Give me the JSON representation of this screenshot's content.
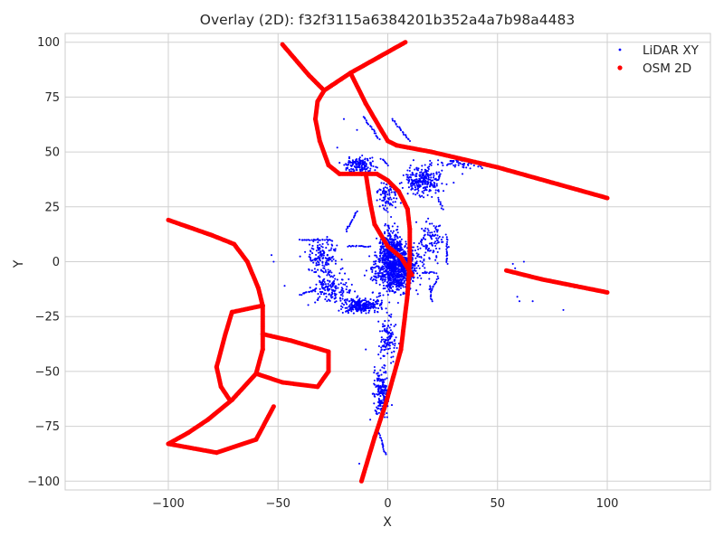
{
  "chart_data": {
    "type": "scatter",
    "title": "Overlay (2D): f32f3115a6384201b352a4a7b98a4483",
    "xlabel": "X",
    "ylabel": "Y",
    "xlim": [
      -147,
      147
    ],
    "ylim": [
      -104,
      104
    ],
    "x_ticks": [
      -100,
      -50,
      0,
      50,
      100
    ],
    "x_tick_labels": [
      "−100",
      "−50",
      "0",
      "50",
      "100"
    ],
    "y_ticks": [
      100,
      75,
      50,
      25,
      0,
      -25,
      -50,
      -75,
      -100
    ],
    "y_tick_labels": [
      "100",
      "75",
      "50",
      "25",
      "0",
      "−25",
      "−50",
      "−75",
      "−100"
    ],
    "grid": true,
    "legend": {
      "position": "top-right",
      "entries": [
        {
          "label": "LiDAR XY",
          "color": "#0000ff",
          "marker": "small-dot"
        },
        {
          "label": "OSM 2D",
          "color": "#ff0000",
          "marker": "dot"
        }
      ]
    },
    "series": [
      {
        "name": "OSM 2D",
        "color": "#ff0000",
        "polylines": [
          [
            [
              -48,
              99
            ],
            [
              -36,
              85
            ],
            [
              -29,
              78
            ],
            [
              -17,
              86
            ],
            [
              8,
              100
            ]
          ],
          [
            [
              -29,
              78
            ],
            [
              -32,
              73
            ],
            [
              -33,
              65
            ],
            [
              -31,
              55
            ],
            [
              -27,
              44
            ],
            [
              -22,
              40
            ],
            [
              -12,
              40
            ],
            [
              -5,
              40
            ],
            [
              0,
              37
            ],
            [
              5,
              32
            ],
            [
              9,
              24
            ],
            [
              10,
              15
            ],
            [
              10,
              0
            ],
            [
              9,
              -15
            ],
            [
              6,
              -40
            ],
            [
              -1,
              -65
            ],
            [
              -6,
              -80
            ],
            [
              -12,
              -100
            ]
          ],
          [
            [
              -17,
              86
            ],
            [
              -10,
              72
            ],
            [
              -3,
              60
            ],
            [
              0,
              55
            ],
            [
              4,
              53
            ],
            [
              20,
              50
            ],
            [
              50,
              43
            ],
            [
              75,
              36
            ],
            [
              100,
              29
            ]
          ],
          [
            [
              -10,
              40
            ],
            [
              -8,
              27
            ],
            [
              -6,
              17
            ],
            [
              0,
              7
            ],
            [
              6,
              2
            ],
            [
              11,
              -6
            ]
          ],
          [
            [
              54,
              -4
            ],
            [
              70,
              -8
            ],
            [
              85,
              -11
            ],
            [
              100,
              -14
            ]
          ],
          [
            [
              -100,
              19
            ],
            [
              -80,
              12
            ],
            [
              -70,
              8
            ],
            [
              -64,
              0
            ],
            [
              -59,
              -12
            ],
            [
              -57,
              -20
            ]
          ],
          [
            [
              -57,
              -20
            ],
            [
              -71,
              -23
            ],
            [
              -74,
              -33
            ],
            [
              -78,
              -48
            ],
            [
              -76,
              -57
            ],
            [
              -72,
              -63
            ]
          ],
          [
            [
              -57,
              -20
            ],
            [
              -57,
              -33
            ],
            [
              -57,
              -40
            ],
            [
              -60,
              -51
            ],
            [
              -71,
              -63
            ]
          ],
          [
            [
              -57,
              -33
            ],
            [
              -44,
              -36
            ],
            [
              -27,
              -41
            ],
            [
              -27,
              -50
            ],
            [
              -32,
              -57
            ],
            [
              -48,
              -55
            ],
            [
              -60,
              -51
            ]
          ],
          [
            [
              -71,
              -63
            ],
            [
              -82,
              -72
            ],
            [
              -91,
              -78
            ],
            [
              -100,
              -83
            ]
          ],
          [
            [
              -100,
              -83
            ],
            [
              -78,
              -87
            ],
            [
              -60,
              -81
            ],
            [
              -52,
              -66
            ]
          ]
        ]
      },
      {
        "name": "LiDAR XY",
        "color": "#0000ff",
        "clusters": [
          {
            "cx": 4,
            "cy": -3,
            "sx": 9,
            "sy": 10,
            "n": 900
          },
          {
            "cx": 2,
            "cy": 5,
            "sx": 5,
            "sy": 10,
            "n": 300
          },
          {
            "cx": 16,
            "cy": 37,
            "sx": 8,
            "sy": 6,
            "n": 260
          },
          {
            "cx": -13,
            "cy": 44,
            "sx": 6,
            "sy": 3,
            "n": 150
          },
          {
            "cx": -12,
            "cy": -20,
            "sx": 8,
            "sy": 3,
            "n": 250
          },
          {
            "cx": -25,
            "cy": -12,
            "sx": 8,
            "sy": 6,
            "n": 160
          },
          {
            "cx": -30,
            "cy": 2,
            "sx": 7,
            "sy": 7,
            "n": 140
          },
          {
            "cx": -3,
            "cy": -60,
            "sx": 3,
            "sy": 10,
            "n": 180
          },
          {
            "cx": 0,
            "cy": 30,
            "sx": 4,
            "sy": 6,
            "n": 90
          },
          {
            "cx": 20,
            "cy": 10,
            "sx": 5,
            "sy": 8,
            "n": 100
          },
          {
            "cx": 0,
            "cy": -35,
            "sx": 4,
            "sy": 10,
            "n": 120
          },
          {
            "cx": 33,
            "cy": 45,
            "sx": 10,
            "sy": 2,
            "n": 60
          }
        ],
        "segments": [
          [
            [
              -11,
              66
            ],
            [
              -4,
              56
            ]
          ],
          [
            [
              -3,
              47
            ],
            [
              0,
              44
            ]
          ],
          [
            [
              2,
              65
            ],
            [
              10,
              55
            ]
          ],
          [
            [
              -14,
              23
            ],
            [
              -19,
              14
            ]
          ],
          [
            [
              -18,
              7
            ],
            [
              -8,
              7
            ]
          ],
          [
            [
              -40,
              10
            ],
            [
              -26,
              10
            ]
          ],
          [
            [
              16,
              -5
            ],
            [
              22,
              -5
            ]
          ],
          [
            [
              19,
              -11
            ],
            [
              20,
              -18
            ]
          ],
          [
            [
              20,
              -13
            ],
            [
              23,
              -7
            ]
          ],
          [
            [
              -4,
              -78
            ],
            [
              -1,
              -88
            ]
          ],
          [
            [
              27,
              11
            ],
            [
              27,
              -1
            ]
          ],
          [
            [
              -40,
              -15
            ],
            [
              -33,
              -13
            ]
          ],
          [
            [
              23,
              29
            ],
            [
              25,
              24
            ]
          ]
        ],
        "isolated": [
          [
            -47,
            -11
          ],
          [
            -30,
            -10
          ],
          [
            -34,
            -13
          ],
          [
            -13,
            -92
          ],
          [
            -8,
            -72
          ],
          [
            -6,
            -48
          ],
          [
            -10,
            -40
          ],
          [
            -12,
            76
          ],
          [
            -20,
            65
          ],
          [
            -23,
            52
          ],
          [
            -14,
            60
          ],
          [
            57,
            -1
          ],
          [
            58,
            -3
          ],
          [
            59,
            -16
          ],
          [
            60,
            -18
          ],
          [
            62,
            0
          ],
          [
            66,
            -18
          ],
          [
            80,
            -22
          ],
          [
            30,
            36
          ],
          [
            27,
            44
          ],
          [
            34,
            40
          ],
          [
            13,
            18
          ],
          [
            -21,
            1
          ],
          [
            -52,
            0
          ],
          [
            -53,
            3
          ],
          [
            -28,
            -16
          ],
          [
            -29,
            4
          ]
        ]
      }
    ]
  }
}
